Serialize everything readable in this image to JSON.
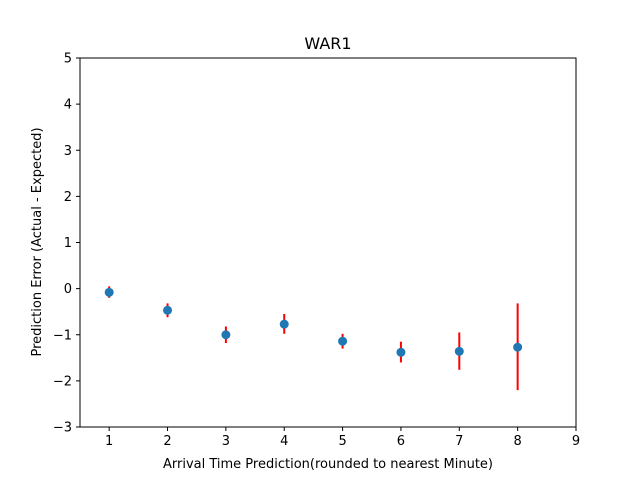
{
  "chart_data": {
    "type": "scatter",
    "title": "WAR1",
    "xlabel": "Arrival Time Prediction(rounded to nearest Minute)",
    "ylabel": "Prediction Error (Actual - Expected)",
    "xlim": [
      0.5,
      9
    ],
    "ylim": [
      -3,
      5
    ],
    "xticks": [
      1,
      2,
      3,
      4,
      5,
      6,
      7,
      8,
      9
    ],
    "yticks": [
      -3,
      -2,
      -1,
      0,
      1,
      2,
      3,
      4,
      5
    ],
    "grid": false,
    "x": [
      1,
      2,
      3,
      4,
      5,
      6,
      7,
      8
    ],
    "y": [
      -0.08,
      -0.47,
      -1.0,
      -0.77,
      -1.14,
      -1.38,
      -1.36,
      -1.27
    ],
    "yerr_low": [
      -0.2,
      -0.62,
      -1.18,
      -0.98,
      -1.3,
      -1.6,
      -1.76,
      -2.2
    ],
    "yerr_high": [
      0.05,
      -0.32,
      -0.82,
      -0.55,
      -0.98,
      -1.15,
      -0.95,
      -0.32
    ],
    "marker_color": "#1f77b4",
    "errorbar_color": "#ff0000"
  }
}
